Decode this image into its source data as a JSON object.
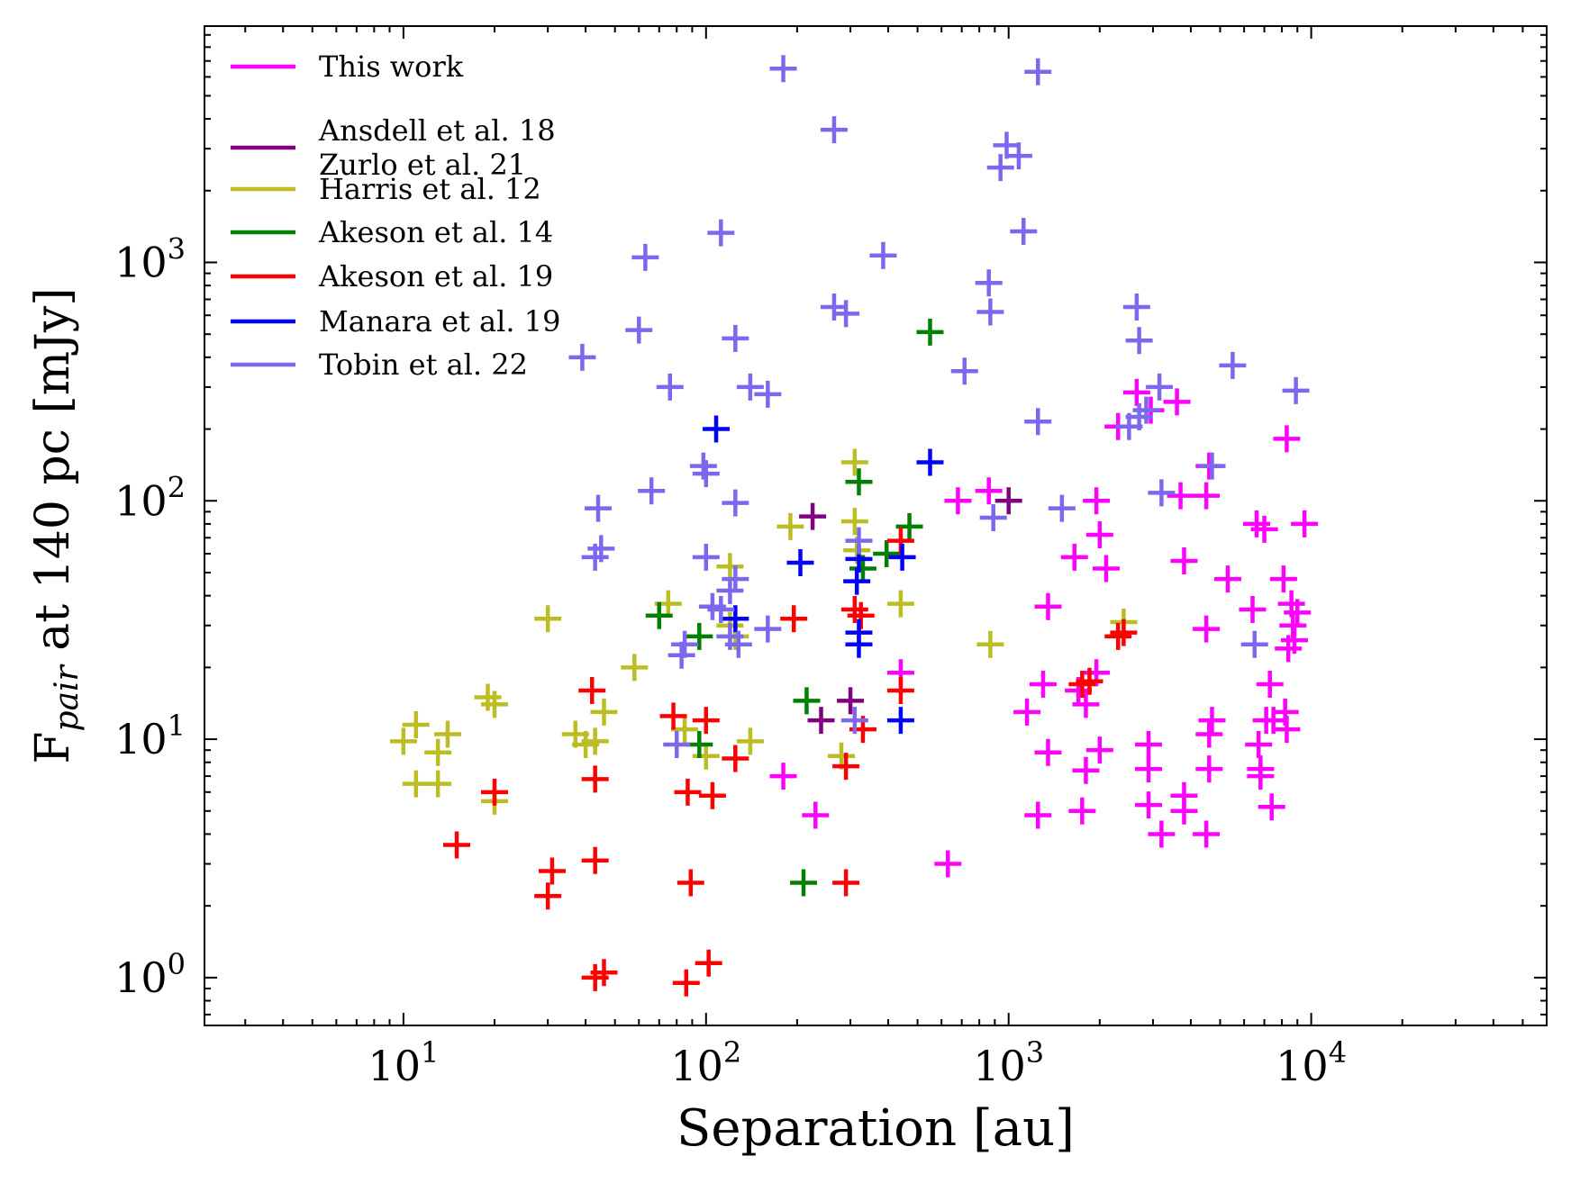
{
  "chart_data": {
    "type": "scatter",
    "xlabel": "Separation [au]",
    "ylabel_main": "F",
    "ylabel_sub": "pair",
    "ylabel_rest": " at 140 pc [mJy]",
    "xscale": "log",
    "yscale": "log",
    "xlim": [
      2.2,
      60000
    ],
    "ylim": [
      0.63,
      9800
    ],
    "xticks": [
      {
        "value": 10,
        "base": "10",
        "exp": "1"
      },
      {
        "value": 100,
        "base": "10",
        "exp": "2"
      },
      {
        "value": 1000,
        "base": "10",
        "exp": "3"
      },
      {
        "value": 10000,
        "base": "10",
        "exp": "4"
      }
    ],
    "yticks": [
      {
        "value": 1,
        "base": "10",
        "exp": "0"
      },
      {
        "value": 10,
        "base": "10",
        "exp": "1"
      },
      {
        "value": 100,
        "base": "10",
        "exp": "2"
      },
      {
        "value": 1000,
        "base": "10",
        "exp": "3"
      }
    ],
    "grid": false,
    "legend_position": "top-left",
    "marker": "plus",
    "series": [
      {
        "name": "This work",
        "color": "#ff00ff",
        "points": [
          [
            2650,
            285
          ],
          [
            2950,
            240
          ],
          [
            3600,
            260
          ],
          [
            2300,
            205
          ],
          [
            8300,
            182
          ],
          [
            4600,
            140
          ],
          [
            680,
            100
          ],
          [
            860,
            110
          ],
          [
            1950,
            100
          ],
          [
            3700,
            105
          ],
          [
            4500,
            105
          ],
          [
            2000,
            72
          ],
          [
            1650,
            58
          ],
          [
            2100,
            52
          ],
          [
            3800,
            56
          ],
          [
            5300,
            47
          ],
          [
            6600,
            80
          ],
          [
            7000,
            76
          ],
          [
            9500,
            80
          ],
          [
            8100,
            47
          ],
          [
            1350,
            36
          ],
          [
            6400,
            35
          ],
          [
            8600,
            37
          ],
          [
            9000,
            34
          ],
          [
            8700,
            30
          ],
          [
            4500,
            29
          ],
          [
            8400,
            24
          ],
          [
            8800,
            26
          ],
          [
            440,
            19
          ],
          [
            1300,
            17
          ],
          [
            1700,
            16
          ],
          [
            1800,
            14
          ],
          [
            1950,
            19
          ],
          [
            1150,
            13
          ],
          [
            7300,
            17
          ],
          [
            7100,
            12
          ],
          [
            7500,
            12
          ],
          [
            8200,
            13
          ],
          [
            8300,
            11
          ],
          [
            4700,
            12
          ],
          [
            4600,
            10.5
          ],
          [
            2900,
            9.5
          ],
          [
            6700,
            9.5
          ],
          [
            6800,
            7.5
          ],
          [
            2900,
            7.5
          ],
          [
            4600,
            7.5
          ],
          [
            2000,
            9
          ],
          [
            1350,
            8.8
          ],
          [
            1800,
            7.4
          ],
          [
            6800,
            7
          ],
          [
            180,
            7
          ],
          [
            3800,
            5.8
          ],
          [
            2900,
            5.3
          ],
          [
            3800,
            5
          ],
          [
            1250,
            4.8
          ],
          [
            1750,
            5
          ],
          [
            7400,
            5.2
          ],
          [
            230,
            4.8
          ],
          [
            3200,
            4
          ],
          [
            4500,
            4
          ],
          [
            630,
            3
          ]
        ]
      },
      {
        "name": "Ansdell et al. 18\nZurlo et al. 21",
        "color": "#800080",
        "points": [
          [
            225,
            86
          ],
          [
            1000,
            100
          ],
          [
            300,
            14.5
          ],
          [
            240,
            12
          ]
        ]
      },
      {
        "name": "Harris et al. 12",
        "color": "#bcbd22",
        "points": [
          [
            310,
            145
          ],
          [
            310,
            82
          ],
          [
            190,
            78
          ],
          [
            120,
            53
          ],
          [
            315,
            62
          ],
          [
            75,
            37
          ],
          [
            30,
            32
          ],
          [
            440,
            37
          ],
          [
            58,
            20
          ],
          [
            125,
            27
          ],
          [
            120,
            30
          ],
          [
            870,
            25
          ],
          [
            2400,
            31
          ],
          [
            11,
            11.5
          ],
          [
            10,
            9.8
          ],
          [
            14,
            10.5
          ],
          [
            13,
            8.8
          ],
          [
            19,
            15
          ],
          [
            20,
            14
          ],
          [
            37,
            10.5
          ],
          [
            40,
            9.5
          ],
          [
            43,
            9.8
          ],
          [
            46,
            13
          ],
          [
            85,
            11
          ],
          [
            100,
            8.5
          ],
          [
            140,
            9.8
          ],
          [
            11,
            6.5
          ],
          [
            13,
            6.5
          ],
          [
            20,
            5.5
          ],
          [
            280,
            8.5
          ]
        ]
      },
      {
        "name": "Akeson et al. 14",
        "color": "#008000",
        "points": [
          [
            550,
            510
          ],
          [
            320,
            120
          ],
          [
            470,
            78
          ],
          [
            395,
            60
          ],
          [
            330,
            52
          ],
          [
            70,
            33
          ],
          [
            95,
            27
          ],
          [
            215,
            14.5
          ],
          [
            95,
            9.5
          ],
          [
            210,
            2.5
          ]
        ]
      },
      {
        "name": "Akeson et al. 19",
        "color": "#ff0000",
        "points": [
          [
            440,
            68
          ],
          [
            310,
            35
          ],
          [
            325,
            33
          ],
          [
            195,
            32
          ],
          [
            2400,
            28
          ],
          [
            2300,
            27
          ],
          [
            1850,
            17.5
          ],
          [
            1750,
            17
          ],
          [
            42,
            16
          ],
          [
            440,
            16
          ],
          [
            78,
            12.5
          ],
          [
            100,
            12
          ],
          [
            330,
            11
          ],
          [
            125,
            8.3
          ],
          [
            290,
            7.7
          ],
          [
            43,
            6.8
          ],
          [
            20,
            6
          ],
          [
            87,
            6
          ],
          [
            105,
            5.8
          ],
          [
            15,
            3.6
          ],
          [
            31,
            2.8
          ],
          [
            30,
            2.2
          ],
          [
            43,
            3.1
          ],
          [
            89,
            2.5
          ],
          [
            290,
            2.5
          ],
          [
            43,
            1
          ],
          [
            46,
            1.05
          ],
          [
            86,
            0.95
          ],
          [
            102,
            1.15
          ]
        ]
      },
      {
        "name": "Manara et al. 19",
        "color": "#0000ff",
        "points": [
          [
            108,
            200
          ],
          [
            550,
            145
          ],
          [
            205,
            55
          ],
          [
            320,
            57
          ],
          [
            445,
            58
          ],
          [
            315,
            46
          ],
          [
            125,
            32
          ],
          [
            320,
            28
          ],
          [
            320,
            25
          ],
          [
            440,
            12
          ]
        ]
      },
      {
        "name": "Tobin et al. 22",
        "color": "#7b68ee",
        "points": [
          [
            180,
            6500
          ],
          [
            1250,
            6300
          ],
          [
            265,
            3600
          ],
          [
            985,
            3100
          ],
          [
            1080,
            2800
          ],
          [
            940,
            2500
          ],
          [
            112,
            1330
          ],
          [
            1120,
            1350
          ],
          [
            63,
            1050
          ],
          [
            385,
            1070
          ],
          [
            860,
            820
          ],
          [
            265,
            650
          ],
          [
            290,
            610
          ],
          [
            870,
            620
          ],
          [
            2650,
            650
          ],
          [
            60,
            520
          ],
          [
            125,
            480
          ],
          [
            2700,
            470
          ],
          [
            39,
            400
          ],
          [
            715,
            350
          ],
          [
            76,
            300
          ],
          [
            140,
            300
          ],
          [
            160,
            280
          ],
          [
            5500,
            370
          ],
          [
            3150,
            300
          ],
          [
            8900,
            290
          ],
          [
            2850,
            240
          ],
          [
            2700,
            225
          ],
          [
            2500,
            205
          ],
          [
            1250,
            215
          ],
          [
            98,
            140
          ],
          [
            100,
            130
          ],
          [
            125,
            98
          ],
          [
            44,
            93
          ],
          [
            66,
            110
          ],
          [
            3200,
            108
          ],
          [
            1500,
            93
          ],
          [
            4700,
            140
          ],
          [
            890,
            85
          ],
          [
            45,
            63
          ],
          [
            43,
            58
          ],
          [
            100,
            58
          ],
          [
            125,
            47
          ],
          [
            320,
            68
          ],
          [
            120,
            42
          ],
          [
            105,
            36
          ],
          [
            112,
            35
          ],
          [
            160,
            29
          ],
          [
            120,
            27
          ],
          [
            85,
            25
          ],
          [
            83,
            22.5
          ],
          [
            6500,
            25
          ],
          [
            310,
            12
          ],
          [
            80,
            9.5
          ],
          [
            128,
            25
          ]
        ]
      }
    ]
  }
}
